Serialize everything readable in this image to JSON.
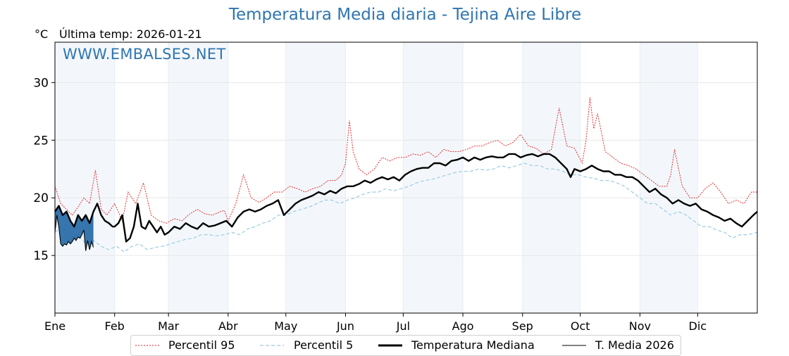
{
  "chart_data": {
    "type": "line",
    "title": "Temperatura Media diaria - Tejina Aire Libre",
    "unit_label": "°C",
    "last_update": "Última temp: 2026-01-21",
    "watermark": "WWW.EMBALSES.NET",
    "xlabel": "",
    "ylabel": "",
    "ylim": [
      10,
      33.5
    ],
    "xlim": [
      0,
      365
    ],
    "grid": true,
    "y_ticks": [
      15,
      20,
      25,
      30
    ],
    "month_labels": [
      "Ene",
      "Feb",
      "Mar",
      "Abr",
      "May",
      "Jun",
      "Jul",
      "Ago",
      "Sep",
      "Oct",
      "Nov",
      "Dic"
    ],
    "month_starts": [
      0,
      31,
      59,
      90,
      120,
      151,
      181,
      212,
      243,
      273,
      304,
      334
    ],
    "legend_position": "bottom-center",
    "series": [
      {
        "name": "Percentil 95",
        "color": "#e31a1c",
        "style": "dotted-thin",
        "x": [
          0,
          3,
          6,
          9,
          12,
          15,
          18,
          21,
          24,
          27,
          31,
          35,
          38,
          42,
          46,
          50,
          54,
          58,
          62,
          66,
          70,
          74,
          78,
          82,
          86,
          88,
          90,
          94,
          98,
          102,
          106,
          110,
          114,
          118,
          122,
          126,
          130,
          134,
          138,
          142,
          146,
          149,
          151,
          153,
          155,
          158,
          162,
          166,
          170,
          174,
          178,
          182,
          186,
          190,
          194,
          198,
          202,
          206,
          210,
          214,
          218,
          222,
          226,
          230,
          234,
          238,
          242,
          246,
          250,
          254,
          258,
          260,
          262,
          266,
          270,
          274,
          276,
          278,
          280,
          282,
          286,
          290,
          294,
          298,
          302,
          306,
          310,
          314,
          318,
          320,
          322,
          326,
          330,
          334,
          338,
          342,
          346,
          350,
          354,
          358,
          362,
          365
        ],
        "values": [
          21.0,
          19.5,
          19.0,
          18.5,
          19.2,
          20.0,
          19.5,
          22.4,
          19.0,
          18.5,
          19.5,
          18.0,
          20.5,
          19.5,
          21.3,
          18.5,
          18.0,
          17.8,
          18.2,
          18.0,
          18.6,
          19.0,
          18.6,
          18.5,
          18.8,
          18.9,
          18.0,
          19.5,
          22.0,
          20.0,
          19.6,
          20.0,
          20.5,
          20.5,
          21.0,
          20.8,
          20.5,
          20.8,
          21.0,
          21.5,
          21.5,
          22.0,
          23.0,
          26.7,
          24.0,
          22.5,
          22.0,
          22.5,
          23.5,
          23.2,
          23.5,
          23.5,
          23.8,
          23.7,
          24.0,
          23.5,
          24.2,
          24.0,
          24.0,
          24.2,
          24.5,
          24.5,
          24.8,
          25.0,
          24.5,
          24.8,
          25.5,
          24.5,
          24.3,
          23.8,
          24.2,
          26.0,
          27.8,
          24.5,
          24.3,
          23.0,
          25.0,
          28.7,
          26.0,
          27.3,
          24.0,
          23.5,
          23.0,
          22.8,
          22.5,
          22.0,
          21.5,
          21.0,
          21.0,
          22.0,
          24.2,
          21.0,
          20.0,
          20.0,
          20.8,
          21.3,
          20.5,
          19.5,
          19.8,
          19.5,
          20.5,
          20.5
        ]
      },
      {
        "name": "Percentil 5",
        "color": "#9ecae1",
        "style": "dashed-thin",
        "x": [
          0,
          4,
          8,
          12,
          16,
          20,
          24,
          28,
          32,
          36,
          40,
          44,
          48,
          52,
          56,
          60,
          64,
          68,
          72,
          76,
          80,
          84,
          88,
          92,
          96,
          100,
          104,
          108,
          112,
          116,
          120,
          124,
          128,
          132,
          136,
          140,
          144,
          148,
          152,
          156,
          160,
          164,
          168,
          172,
          176,
          180,
          184,
          188,
          192,
          196,
          200,
          204,
          208,
          212,
          216,
          220,
          224,
          228,
          232,
          236,
          240,
          244,
          248,
          252,
          256,
          260,
          264,
          268,
          272,
          276,
          280,
          284,
          288,
          292,
          296,
          300,
          304,
          308,
          312,
          316,
          320,
          324,
          328,
          332,
          336,
          340,
          344,
          348,
          352,
          356,
          360,
          365
        ],
        "values": [
          17.0,
          17.5,
          16.5,
          16.8,
          16.0,
          16.3,
          15.8,
          15.5,
          15.8,
          15.3,
          15.8,
          16.0,
          15.5,
          15.7,
          15.8,
          16.0,
          16.2,
          16.4,
          16.5,
          16.8,
          16.8,
          16.7,
          16.8,
          17.0,
          16.8,
          17.3,
          17.5,
          17.8,
          18.0,
          18.5,
          18.5,
          18.8,
          19.0,
          19.2,
          19.5,
          19.8,
          19.8,
          19.5,
          19.8,
          20.0,
          20.3,
          20.5,
          20.5,
          20.8,
          20.6,
          20.8,
          21.0,
          21.3,
          21.5,
          21.6,
          21.8,
          22.0,
          22.2,
          22.3,
          22.3,
          22.5,
          22.4,
          22.5,
          22.8,
          22.6,
          22.8,
          23.0,
          22.8,
          22.8,
          22.5,
          22.5,
          22.3,
          22.0,
          22.0,
          21.8,
          21.7,
          21.5,
          21.5,
          21.3,
          21.0,
          20.5,
          20.0,
          19.5,
          19.5,
          19.0,
          18.5,
          18.8,
          18.5,
          18.0,
          17.5,
          17.5,
          17.2,
          17.0,
          16.5,
          16.8,
          16.8,
          17.0
        ]
      },
      {
        "name": "Temperatura Mediana",
        "color": "#000000",
        "style": "solid-thick",
        "x": [
          0,
          2,
          4,
          6,
          8,
          10,
          12,
          14,
          16,
          18,
          20,
          22,
          24,
          26,
          28,
          30,
          31,
          33,
          35,
          37,
          39,
          41,
          43,
          45,
          47,
          49,
          51,
          53,
          55,
          57,
          59,
          62,
          65,
          68,
          71,
          74,
          77,
          80,
          83,
          86,
          89,
          92,
          95,
          98,
          101,
          104,
          107,
          110,
          113,
          116,
          119,
          122,
          125,
          128,
          131,
          134,
          137,
          140,
          143,
          146,
          149,
          152,
          155,
          158,
          161,
          164,
          167,
          170,
          173,
          176,
          179,
          182,
          185,
          188,
          191,
          194,
          197,
          200,
          203,
          206,
          209,
          212,
          215,
          218,
          221,
          224,
          227,
          230,
          233,
          236,
          239,
          242,
          245,
          248,
          251,
          254,
          257,
          260,
          263,
          266,
          268,
          270,
          273,
          276,
          279,
          282,
          285,
          288,
          291,
          294,
          297,
          300,
          303,
          306,
          309,
          312,
          315,
          318,
          321,
          324,
          327,
          330,
          333,
          336,
          339,
          342,
          345,
          348,
          351,
          354,
          357,
          360,
          363,
          365
        ],
        "values": [
          18.8,
          19.3,
          18.5,
          18.8,
          18.0,
          17.5,
          18.5,
          18.0,
          18.5,
          17.8,
          18.8,
          19.5,
          18.5,
          18.0,
          17.8,
          17.5,
          17.5,
          17.8,
          18.5,
          16.2,
          16.5,
          17.5,
          19.5,
          17.5,
          17.3,
          18.0,
          17.5,
          17.0,
          17.5,
          16.8,
          17.0,
          17.5,
          17.3,
          17.8,
          17.5,
          17.3,
          17.8,
          17.5,
          17.6,
          17.8,
          18.0,
          17.5,
          18.3,
          18.8,
          19.0,
          18.8,
          19.0,
          19.3,
          19.5,
          19.8,
          18.5,
          19.0,
          19.5,
          19.8,
          20.0,
          20.2,
          20.5,
          20.3,
          20.6,
          20.4,
          20.8,
          21.0,
          21.0,
          21.2,
          21.5,
          21.3,
          21.6,
          21.8,
          21.6,
          21.8,
          21.5,
          22.0,
          22.3,
          22.5,
          22.6,
          22.6,
          23.0,
          23.0,
          22.8,
          23.2,
          23.3,
          23.5,
          23.2,
          23.5,
          23.3,
          23.5,
          23.6,
          23.5,
          23.5,
          23.8,
          23.8,
          23.5,
          23.7,
          23.8,
          23.6,
          23.8,
          23.8,
          23.5,
          23.0,
          22.5,
          21.8,
          22.5,
          22.3,
          22.5,
          22.8,
          22.5,
          22.3,
          22.3,
          22.0,
          22.0,
          21.8,
          21.8,
          21.5,
          21.0,
          20.5,
          20.8,
          20.3,
          20.0,
          19.5,
          19.8,
          19.5,
          19.3,
          19.5,
          19.0,
          18.8,
          18.5,
          18.3,
          18.0,
          18.2,
          17.8,
          17.5,
          18.0,
          18.5,
          18.8
        ]
      },
      {
        "name": "T. Media 2026",
        "color": "#000000",
        "style": "solid-thin",
        "fill_color": "#2b6ea9",
        "x": [
          0,
          1,
          2,
          3,
          4,
          5,
          6,
          7,
          8,
          9,
          10,
          11,
          12,
          13,
          14,
          15,
          16,
          17,
          18,
          19,
          20
        ],
        "values": [
          17.0,
          18.5,
          17.5,
          16.0,
          15.8,
          16.0,
          15.9,
          16.2,
          16.0,
          16.2,
          16.5,
          16.3,
          16.6,
          16.5,
          16.8,
          17.2,
          15.4,
          16.3,
          15.5,
          16.2,
          15.7
        ]
      }
    ]
  }
}
